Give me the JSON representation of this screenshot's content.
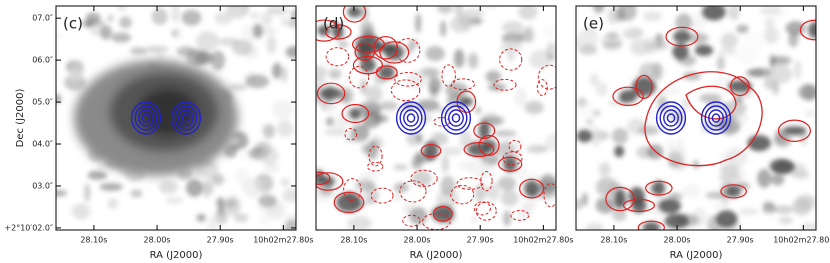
{
  "chart_data": [
    {
      "type": "image",
      "annotation": "(c)",
      "xlabel": "RA (J2000)",
      "ylabel": "Dec (J2000)",
      "xlim": [
        28.16,
        27.78
      ],
      "xticks": [
        {
          "value": 28.1,
          "label": "28.10s"
        },
        {
          "value": 28.0,
          "label": "28.00s"
        },
        {
          "value": 27.9,
          "label": "27.90s"
        },
        {
          "value": 27.8,
          "label": "10h02m27.80s"
        }
      ],
      "ylim": [
        1.95,
        7.29
      ],
      "yticks": [
        {
          "value": 2,
          "label": "+2°10′02.0″"
        },
        {
          "value": 3,
          "label": "03.0″"
        },
        {
          "value": 4,
          "label": "04.0″"
        },
        {
          "value": 5,
          "label": "05.0″"
        },
        {
          "value": 6,
          "label": "06.0″"
        },
        {
          "value": 7,
          "label": "07.0″"
        }
      ]
    },
    {
      "type": "image",
      "annotation": "(d)",
      "xlabel": "RA (J2000)",
      "xlim": [
        28.16,
        27.78
      ],
      "xticks": [
        {
          "value": 28.1,
          "label": "28.10s"
        },
        {
          "value": 28.0,
          "label": "28.00s"
        },
        {
          "value": 27.9,
          "label": "27.90s"
        },
        {
          "value": 27.8,
          "label": "10h02m27.80s"
        }
      ]
    },
    {
      "type": "image",
      "annotation": "(e)",
      "xlabel": "RA (J2000)",
      "xlim": [
        28.16,
        27.78
      ],
      "xticks": [
        {
          "value": 28.1,
          "label": "28.10s"
        },
        {
          "value": 28.0,
          "label": "28.00s"
        },
        {
          "value": 27.9,
          "label": "27.90s"
        },
        {
          "value": 27.8,
          "label": "10h02m27.80s"
        }
      ]
    }
  ]
}
